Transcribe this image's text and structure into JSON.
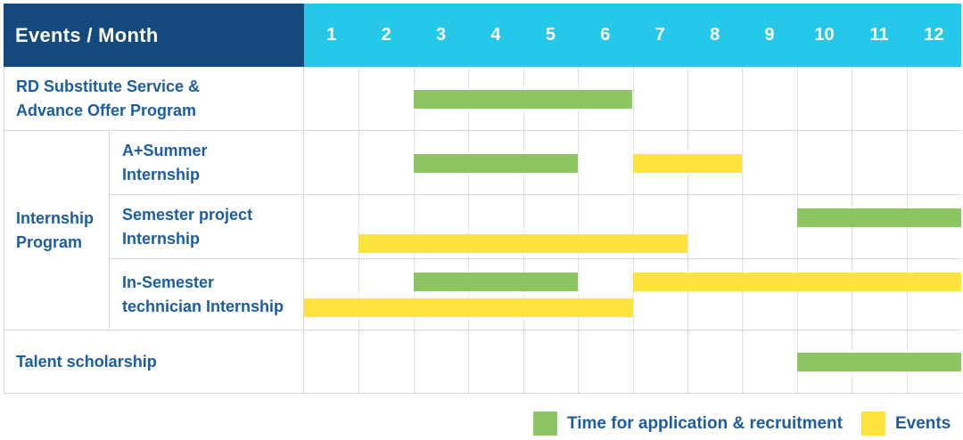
{
  "header": {
    "events_month_label": "Events / Month",
    "months": [
      "1",
      "2",
      "3",
      "4",
      "5",
      "6",
      "7",
      "8",
      "9",
      "10",
      "11",
      "12"
    ]
  },
  "colors": {
    "header_navy": "#14497E",
    "header_cyan": "#25C8E8",
    "application_green": "#8BC564",
    "events_yellow": "#FFE33D",
    "label_blue": "#1C5DA1",
    "grid_gray": "#D9D9D9",
    "background": "#FFFFFF"
  },
  "legend": {
    "items": [
      {
        "label": "Time for application & recruitment",
        "type": "application"
      },
      {
        "label": "Events",
        "type": "events"
      }
    ]
  },
  "chart_data": {
    "type": "gantt",
    "x_unit": "month",
    "x_range": [
      1,
      12
    ],
    "bar_types": {
      "application": "Time for application & recruitment",
      "events": "Events"
    },
    "group_label_lines": {
      "Internship Program": [
        "Internship",
        "Program"
      ]
    },
    "rows": [
      {
        "label_lines": [
          "RD Substitute Service &",
          "Advance Offer Program"
        ],
        "group": null,
        "bars": [
          {
            "type": "application",
            "start_month": 3,
            "end_month": 6,
            "line": "center"
          }
        ]
      },
      {
        "label_lines": [
          "A+Summer",
          "Internship"
        ],
        "group": "Internship Program",
        "bars": [
          {
            "type": "application",
            "start_month": 3,
            "end_month": 5,
            "line": "center"
          },
          {
            "type": "events",
            "start_month": 7,
            "end_month": 8,
            "line": "center"
          }
        ]
      },
      {
        "label_lines": [
          "Semester project",
          "Internship"
        ],
        "group": "Internship Program",
        "bars": [
          {
            "type": "application",
            "start_month": 10,
            "end_month": 12,
            "line": "top"
          },
          {
            "type": "events",
            "start_month": 2,
            "end_month": 7,
            "line": "bottom"
          }
        ]
      },
      {
        "label_lines": [
          "In-Semester",
          "technician Internship"
        ],
        "group": "Internship Program",
        "bars": [
          {
            "type": "application",
            "start_month": 3,
            "end_month": 5,
            "line": "top"
          },
          {
            "type": "events",
            "start_month": 7,
            "end_month": 12,
            "line": "top"
          },
          {
            "type": "events",
            "start_month": 1,
            "end_month": 6,
            "line": "bottom"
          }
        ]
      },
      {
        "label_lines": [
          "Talent scholarship"
        ],
        "group": null,
        "bars": [
          {
            "type": "application",
            "start_month": 10,
            "end_month": 12,
            "line": "center"
          }
        ]
      }
    ]
  }
}
